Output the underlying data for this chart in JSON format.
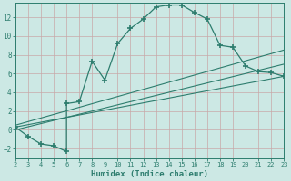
{
  "xlabel": "Humidex (Indice chaleur)",
  "bg_color": "#cce8e4",
  "line_color": "#2d7d6e",
  "grid_color": "#b8d8d4",
  "xlim": [
    2,
    23
  ],
  "ylim": [
    -3,
    13.5
  ],
  "xticks": [
    2,
    3,
    4,
    5,
    6,
    7,
    8,
    9,
    10,
    11,
    12,
    13,
    14,
    15,
    16,
    17,
    18,
    19,
    20,
    21,
    22,
    23
  ],
  "yticks": [
    -2,
    0,
    2,
    4,
    6,
    8,
    10,
    12
  ],
  "curve_x": [
    2,
    3,
    4,
    5,
    6,
    6,
    7,
    8,
    9,
    10,
    11,
    12,
    13,
    14,
    15,
    16,
    17,
    18,
    19,
    20,
    21,
    22,
    23
  ],
  "curve_y": [
    0.3,
    -0.7,
    -1.5,
    -1.7,
    -2.3,
    2.8,
    3.0,
    7.3,
    5.3,
    9.2,
    10.8,
    11.8,
    13.1,
    13.3,
    13.3,
    12.5,
    11.8,
    9.0,
    8.8,
    6.8,
    6.2,
    6.1,
    5.7
  ],
  "line1_x": [
    2,
    23
  ],
  "line1_y": [
    0.3,
    5.7
  ],
  "line2_x": [
    2,
    23
  ],
  "line2_y": [
    0.5,
    8.5
  ],
  "line3_x": [
    2,
    23
  ],
  "line3_y": [
    0.0,
    7.0
  ]
}
